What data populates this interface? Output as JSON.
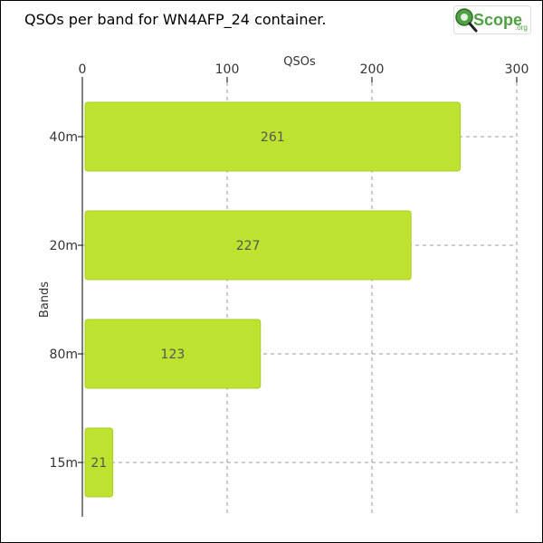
{
  "header": {
    "title": "QSOs per band for WN4AFP_24 container.",
    "logo_text": "Scope",
    "logo_suffix": ".org"
  },
  "colors": {
    "bar": "#bde330",
    "bar_stroke": "#a9cc25",
    "grid": "#999999",
    "axis": "#000000",
    "logo_green": "#4fa043",
    "logo_dark": "#2d6e27"
  },
  "icons": {
    "logo": "magnifier-q-icon"
  },
  "chart_data": {
    "type": "bar",
    "orientation": "horizontal",
    "title": "QSOs per band for WN4AFP_24 container.",
    "xlabel": "QSOs",
    "ylabel": "Bands",
    "categories": [
      "40m",
      "20m",
      "80m",
      "15m"
    ],
    "values": [
      261,
      227,
      123,
      21
    ],
    "xlim": [
      0,
      300
    ],
    "xticks": [
      0,
      100,
      200,
      300
    ],
    "x_axis_position": "top",
    "grid": true,
    "data_labels": true
  }
}
